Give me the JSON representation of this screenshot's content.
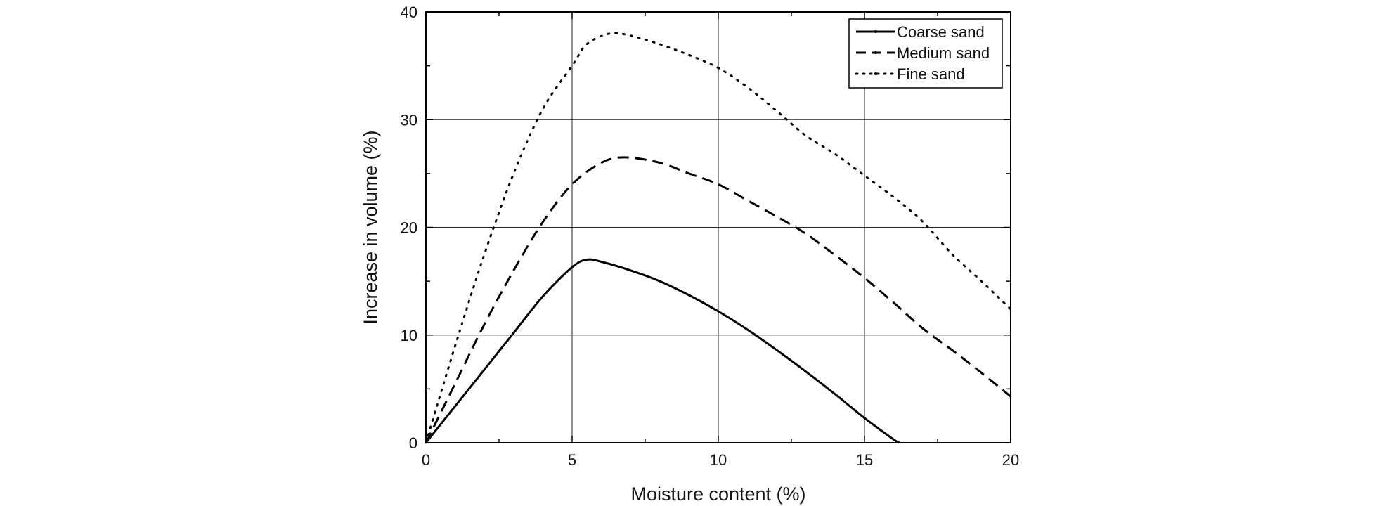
{
  "chart_data": {
    "type": "line",
    "title": "",
    "xlabel": "Moisture content (%)",
    "ylabel": "Increase in volume (%)",
    "xlim": [
      0,
      20
    ],
    "ylim": [
      0,
      40
    ],
    "xticks": [
      0,
      5,
      10,
      15,
      20
    ],
    "yticks": [
      0,
      10,
      20,
      30,
      40
    ],
    "xtick_labels": [
      "0",
      "5",
      "10",
      "15",
      "20"
    ],
    "ytick_labels": [
      "0",
      "10",
      "20",
      "30",
      "40"
    ],
    "grid": true,
    "legend": {
      "position": "top-right"
    },
    "series": [
      {
        "name": "Coarse sand",
        "style": "solid",
        "color": "#000000",
        "x": [
          0,
          1,
          2,
          3,
          4,
          5,
          5.5,
          6,
          7,
          8,
          9,
          10,
          11,
          12,
          13,
          14,
          15,
          16,
          16.2
        ],
        "y": [
          0,
          3.4,
          6.8,
          10.2,
          13.6,
          16.3,
          17.0,
          16.8,
          16.0,
          15.0,
          13.7,
          12.2,
          10.5,
          8.6,
          6.6,
          4.5,
          2.3,
          0.3,
          0
        ]
      },
      {
        "name": "Medium sand",
        "style": "dashed",
        "color": "#000000",
        "x": [
          0,
          1,
          2,
          3,
          4,
          5,
          6,
          6.8,
          8,
          9,
          10,
          11,
          12,
          13,
          14,
          15,
          16,
          17,
          18,
          19,
          20
        ],
        "y": [
          0,
          5.5,
          11.0,
          16.0,
          20.5,
          24.0,
          26.0,
          26.5,
          26.0,
          25.0,
          24.0,
          22.5,
          21.0,
          19.4,
          17.4,
          15.3,
          13.0,
          10.6,
          8.6,
          6.5,
          4.3
        ]
      },
      {
        "name": "Fine sand",
        "style": "dotted",
        "color": "#000000",
        "x": [
          0,
          1,
          2,
          3,
          4,
          5,
          5.5,
          6.3,
          7,
          8,
          9,
          10,
          11,
          12,
          13,
          14,
          15,
          16,
          17,
          18,
          19,
          20
        ],
        "y": [
          0,
          9.0,
          17.5,
          25.0,
          31.0,
          35.0,
          37.0,
          38.0,
          37.8,
          37.0,
          36.0,
          34.8,
          33.0,
          30.8,
          28.5,
          26.8,
          24.8,
          22.8,
          20.5,
          17.5,
          15.0,
          12.4
        ]
      }
    ]
  }
}
